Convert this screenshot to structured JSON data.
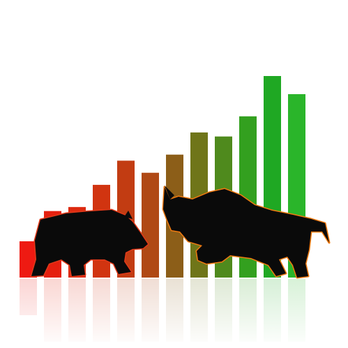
{
  "illustration": {
    "subject": "bear-vs-bull-market",
    "bars": [
      {
        "level": 0.18,
        "color": "#ee1a12"
      },
      {
        "level": 0.33,
        "color": "#e5200f"
      },
      {
        "level": 0.35,
        "color": "#dd2a10"
      },
      {
        "level": 0.46,
        "color": "#d13410"
      },
      {
        "level": 0.58,
        "color": "#c23c12"
      },
      {
        "level": 0.52,
        "color": "#b04915"
      },
      {
        "level": 0.61,
        "color": "#8c5e18"
      },
      {
        "level": 0.72,
        "color": "#6f7519"
      },
      {
        "level": 0.7,
        "color": "#4f8a1d"
      },
      {
        "level": 0.8,
        "color": "#33a01f"
      },
      {
        "level": 1.0,
        "color": "#1fa823"
      },
      {
        "level": 0.91,
        "color": "#2ab52a"
      }
    ],
    "bear_color": "#0a0a0a",
    "bull_color": "#0a0a0a",
    "bear_rim_color": "#e23a1a",
    "bull_rim_color": "#f07a10"
  }
}
